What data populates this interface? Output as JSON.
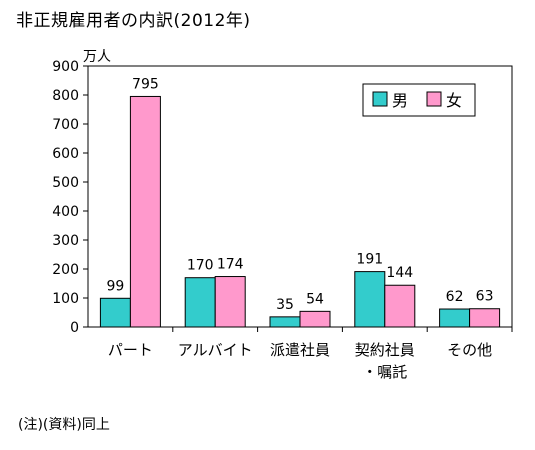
{
  "title": "非正規雇用者の内訳(2012年)",
  "note": "(注)(資料)同上",
  "chart_data": {
    "type": "bar",
    "unit_label": "万人",
    "categories": [
      "パート",
      "アルバイト",
      "派遣社員",
      "契約社員|・嘱託",
      "その他"
    ],
    "series": [
      {
        "name": "男",
        "color": "#33CCCC",
        "values": [
          99,
          170,
          35,
          191,
          62
        ]
      },
      {
        "name": "女",
        "color": "#FF99CC",
        "values": [
          795,
          174,
          54,
          144,
          63
        ]
      }
    ],
    "ylim": [
      0,
      900
    ],
    "yticks": [
      0,
      100,
      200,
      300,
      400,
      500,
      600,
      700,
      800,
      900
    ],
    "grid": false,
    "legend": "top-right"
  }
}
